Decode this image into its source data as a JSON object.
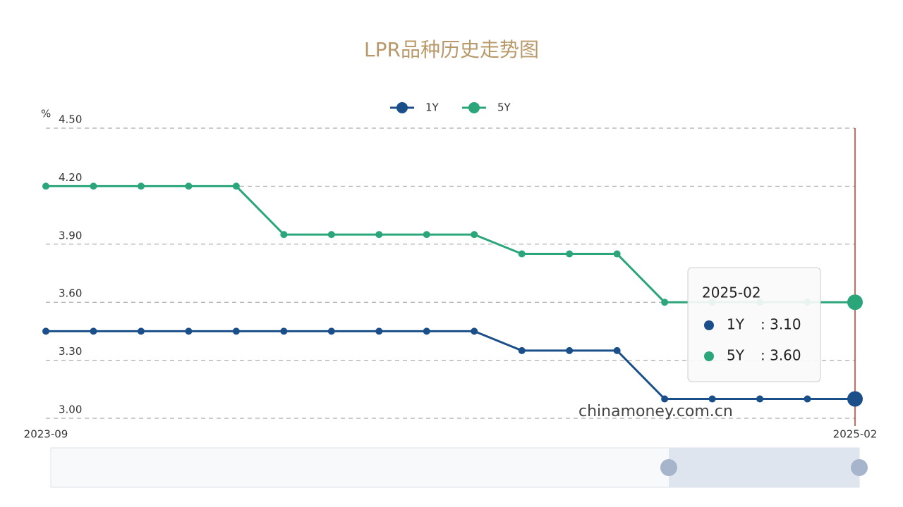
{
  "chart_data": {
    "type": "line",
    "title": "LPR品种历史走势图",
    "y_unit": "%",
    "categories": [
      "2023-09",
      null,
      null,
      null,
      null,
      null,
      null,
      null,
      null,
      null,
      null,
      null,
      null,
      null,
      null,
      null,
      null,
      "2025-02"
    ],
    "series": [
      {
        "name": "1Y",
        "color": "#1a4f8a",
        "values": [
          3.45,
          3.45,
          3.45,
          3.45,
          3.45,
          3.45,
          3.45,
          3.45,
          3.45,
          3.45,
          3.35,
          3.35,
          3.35,
          3.1,
          3.1,
          3.1,
          3.1,
          3.1
        ]
      },
      {
        "name": "5Y",
        "color": "#2aa67a",
        "values": [
          4.2,
          4.2,
          4.2,
          4.2,
          4.2,
          3.95,
          3.95,
          3.95,
          3.95,
          3.95,
          3.85,
          3.85,
          3.85,
          3.6,
          3.6,
          3.6,
          3.6,
          3.6
        ]
      }
    ],
    "ylim": [
      3.0,
      4.5
    ],
    "yticks": [
      {
        "value": 3.0,
        "label": "3.00"
      },
      {
        "value": 3.3,
        "label": "3.30"
      },
      {
        "value": 3.6,
        "label": "3.60"
      },
      {
        "value": 3.9,
        "label": "3.90"
      },
      {
        "value": 4.2,
        "label": "4.20"
      },
      {
        "value": 4.5,
        "label": "4.50"
      }
    ],
    "grid": true,
    "legend": "top",
    "tooltip": {
      "title": "2025-02",
      "items": [
        {
          "name": "1Y",
          "value": 3.1,
          "label": ": 3.10"
        },
        {
          "name": "5Y",
          "value": 3.6,
          "label": ": 3.60"
        }
      ]
    },
    "watermark": "chinamoney.com.cn"
  }
}
